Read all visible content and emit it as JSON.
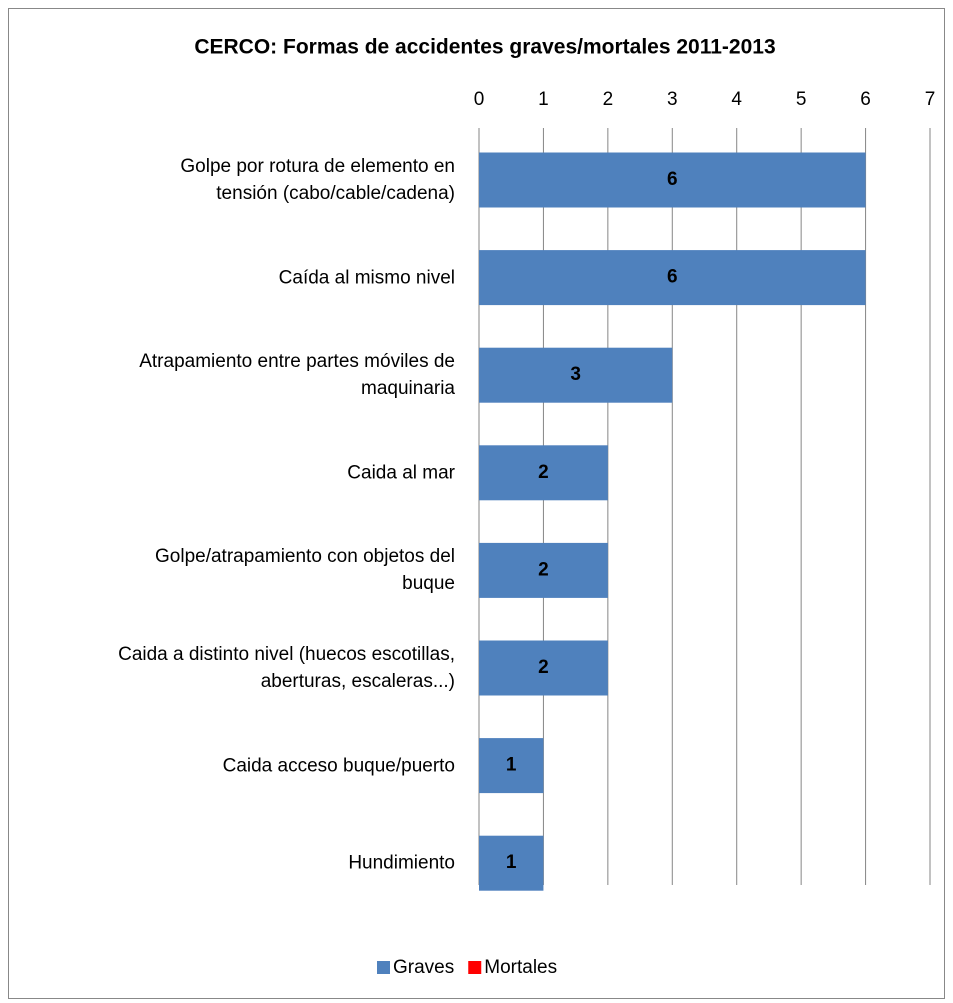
{
  "chart_data": {
    "type": "bar",
    "orientation": "horizontal",
    "stacked": true,
    "title": "CERCO: Formas de accidentes graves/mortales 2011-2013",
    "categories": [
      "Golpe por rotura de elemento en\ntensión (cabo/cable/cadena)",
      "Caída al mismo nivel",
      "Atrapamiento entre partes móviles de\nmaquinaria",
      "Caida al mar",
      "Golpe/atrapamiento con objetos del\nbuque",
      "Caida a distinto nivel (huecos escotillas,\naberturas, escaleras...)",
      "Caida acceso buque/puerto",
      "Hundimiento"
    ],
    "series": [
      {
        "name": "Graves",
        "color": "#4f81bd",
        "values": [
          6,
          6,
          3,
          2,
          2,
          2,
          1,
          1
        ]
      },
      {
        "name": "Mortales",
        "color": "#ff0000",
        "values": [
          0,
          0,
          0,
          0,
          0,
          0,
          0,
          0
        ]
      }
    ],
    "xlim": [
      0,
      7
    ],
    "xticks": [
      0,
      1,
      2,
      3,
      4,
      5,
      6,
      7
    ],
    "grid": true,
    "legend": "bottom"
  }
}
